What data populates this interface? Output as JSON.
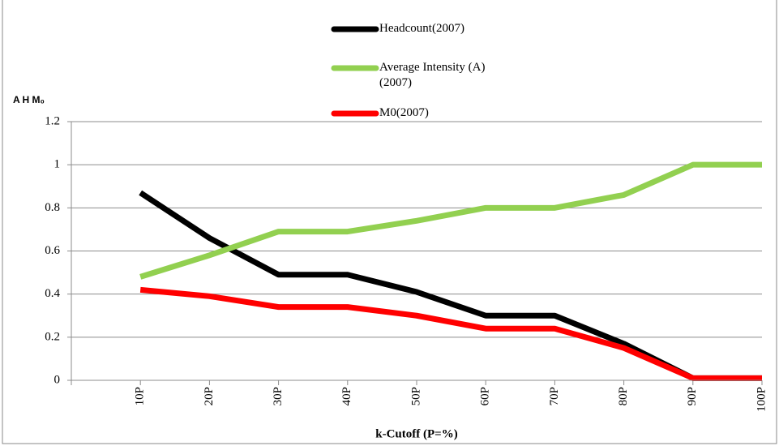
{
  "chart_data": {
    "type": "line",
    "y_label": "A H M₀",
    "x_label": "k-Cutoff (P=%)",
    "categories": [
      null,
      "10P",
      "20P",
      "30P",
      "40P",
      "50P",
      "60P",
      "70P",
      "80P",
      "90P",
      "100P"
    ],
    "series": [
      {
        "name": "Headcount(2007)",
        "color": "#000000",
        "values": [
          null,
          0.87,
          0.66,
          0.49,
          0.49,
          0.41,
          0.3,
          0.3,
          0.17,
          0.01,
          0.01
        ]
      },
      {
        "name": "Average Intensity (A)(2007)",
        "color": "#92d050",
        "values": [
          null,
          0.48,
          0.58,
          0.69,
          0.69,
          0.74,
          0.8,
          0.8,
          0.86,
          1.0,
          1.0
        ]
      },
      {
        "name": "M0(2007)",
        "color": "#ff0000",
        "values": [
          null,
          0.42,
          0.39,
          0.34,
          0.34,
          0.3,
          0.24,
          0.24,
          0.15,
          0.01,
          0.01
        ]
      }
    ],
    "ylim": [
      0,
      1.2
    ],
    "yticks": [
      0,
      0.2,
      0.4,
      0.6,
      0.8,
      1,
      1.2
    ],
    "grid": true
  }
}
